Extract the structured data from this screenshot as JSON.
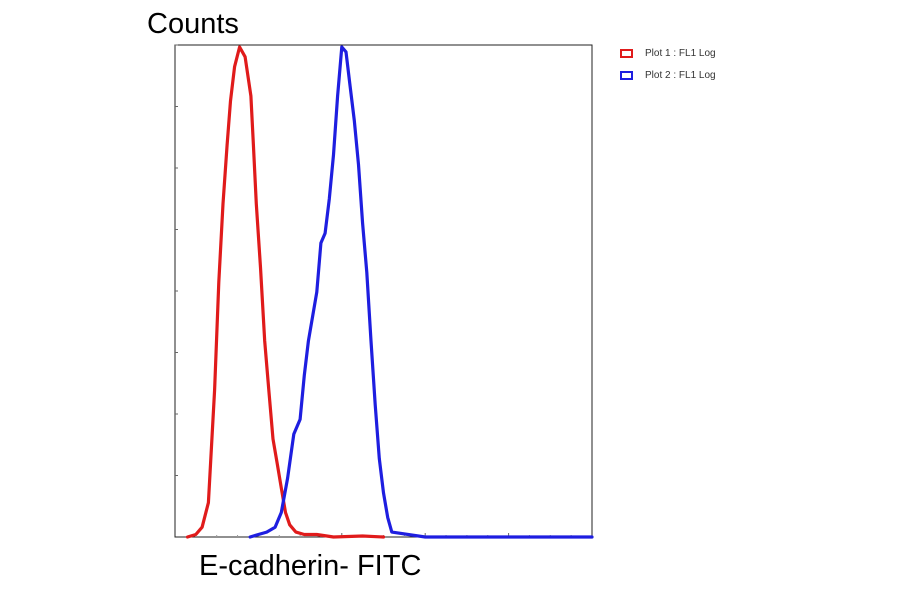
{
  "chart_data": {
    "type": "line",
    "title": "",
    "ylabel": "Counts",
    "xlabel": "E-cadherin- FITC",
    "xlim": [
      0,
      100
    ],
    "ylim": [
      0,
      100
    ],
    "grid": false,
    "legend_position": "top-right",
    "series": [
      {
        "name": "Plot 1 : FL1 Log",
        "color": "#e01b1b",
        "x": [
          3,
          5,
          6.5,
          8,
          9.5,
          10.5,
          11.5,
          12.5,
          13.3,
          14.3,
          15.5,
          16.8,
          18.2,
          18.8,
          19.5,
          20.5,
          21.5,
          22.5,
          23.5,
          24.5,
          25.5,
          26.5,
          27.5,
          29,
          31,
          34,
          38,
          45,
          50
        ],
        "y": [
          0,
          0.5,
          2,
          7,
          30,
          52,
          68,
          80,
          89,
          96,
          100,
          98,
          90,
          80,
          68,
          55,
          40,
          30,
          20,
          15,
          10,
          5,
          2.5,
          1,
          0.5,
          0.5,
          0,
          0.2,
          0
        ]
      },
      {
        "name": "Plot 2 : FL1 Log",
        "color": "#1e1ee0",
        "x": [
          18,
          20,
          22,
          24,
          25.5,
          27,
          28.5,
          30,
          31,
          32,
          33,
          34,
          35,
          36,
          37,
          38,
          39,
          40,
          41,
          42,
          43,
          44,
          45,
          46,
          47,
          48,
          49,
          50,
          51,
          52,
          60,
          70,
          100
        ],
        "y": [
          0,
          0.5,
          1,
          2,
          5,
          12,
          21,
          24,
          33,
          40,
          45,
          50,
          60,
          62,
          69,
          78,
          90,
          100,
          99,
          92,
          85,
          76,
          64,
          54,
          40,
          27,
          16,
          9,
          4,
          1,
          0,
          0,
          0
        ]
      }
    ]
  }
}
